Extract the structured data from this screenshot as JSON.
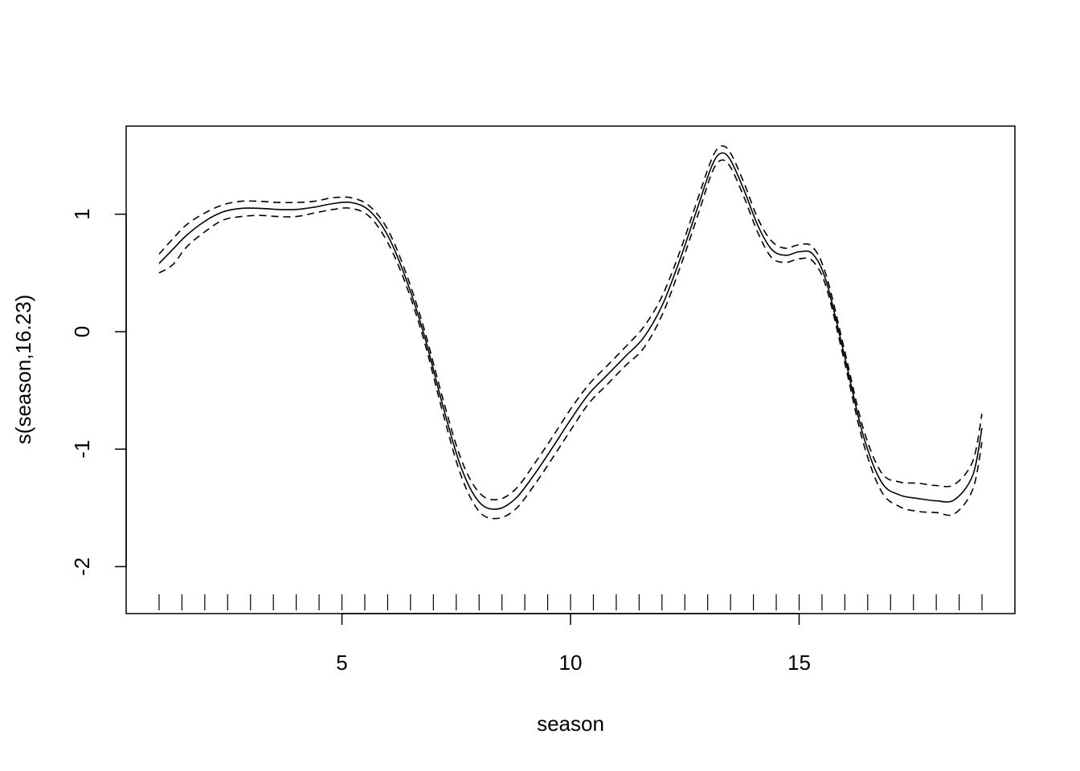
{
  "chart_data": {
    "type": "line",
    "title": "",
    "xlabel": "season",
    "ylabel": "s(season,16.23)",
    "xlim": [
      0.28,
      19.72
    ],
    "ylim": [
      -2.4,
      1.75
    ],
    "x_ticks": [
      {
        "value": 5,
        "label": "5"
      },
      {
        "value": 10,
        "label": "10"
      },
      {
        "value": 15,
        "label": "15"
      }
    ],
    "y_ticks": [
      {
        "value": -2,
        "label": "-2"
      },
      {
        "value": -1,
        "label": "-1"
      },
      {
        "value": 0,
        "label": "0"
      },
      {
        "value": 1,
        "label": "1"
      }
    ],
    "rug": [
      1,
      1.5,
      2,
      2.5,
      3,
      3.5,
      4,
      4.5,
      5,
      5.5,
      6,
      6.5,
      7,
      7.5,
      8,
      8.5,
      9,
      9.5,
      10,
      10.5,
      11,
      11.5,
      12,
      12.5,
      13,
      13.5,
      14,
      14.5,
      15,
      15.5,
      16,
      16.5,
      17,
      17.5,
      18,
      18.5,
      19
    ],
    "grid": false,
    "legend": "none",
    "series": [
      {
        "style": "solid",
        "x": [
          1,
          1.3,
          1.6,
          2,
          2.4,
          2.8,
          3.2,
          3.6,
          4,
          4.4,
          4.8,
          5.2,
          5.6,
          6,
          6.4,
          6.8,
          7.2,
          7.6,
          8,
          8.4,
          8.8,
          9.2,
          9.6,
          10,
          10.4,
          10.8,
          11.2,
          11.6,
          12,
          12.4,
          12.8,
          13.1,
          13.3,
          13.5,
          13.8,
          14.1,
          14.4,
          14.7,
          15,
          15.3,
          15.6,
          16,
          16.4,
          16.8,
          17.2,
          17.6,
          18,
          18.4,
          18.8,
          19
        ],
        "y": [
          0.58,
          0.7,
          0.82,
          0.94,
          1.02,
          1.05,
          1.05,
          1.04,
          1.04,
          1.06,
          1.09,
          1.1,
          1.03,
          0.82,
          0.45,
          -0.03,
          -0.62,
          -1.15,
          -1.45,
          -1.51,
          -1.42,
          -1.22,
          -0.99,
          -0.75,
          -0.53,
          -0.37,
          -0.21,
          -0.05,
          0.22,
          0.62,
          1.08,
          1.42,
          1.52,
          1.46,
          1.2,
          0.9,
          0.7,
          0.65,
          0.68,
          0.66,
          0.42,
          -0.22,
          -0.88,
          -1.28,
          -1.39,
          -1.42,
          -1.44,
          -1.43,
          -1.22,
          -0.82
        ]
      },
      {
        "style": "dashed",
        "x": [
          1,
          1.3,
          1.6,
          2,
          2.4,
          2.8,
          3.2,
          3.6,
          4,
          4.4,
          4.8,
          5.2,
          5.6,
          6,
          6.4,
          6.8,
          7.2,
          7.6,
          8,
          8.4,
          8.8,
          9.2,
          9.6,
          10,
          10.4,
          10.8,
          11.2,
          11.6,
          12,
          12.4,
          12.8,
          13.1,
          13.3,
          13.5,
          13.8,
          14.1,
          14.4,
          14.7,
          15,
          15.3,
          15.6,
          16,
          16.4,
          16.8,
          17.2,
          17.6,
          18,
          18.4,
          18.8,
          19
        ],
        "y": [
          0.66,
          0.79,
          0.91,
          1.01,
          1.08,
          1.11,
          1.11,
          1.1,
          1.1,
          1.11,
          1.14,
          1.14,
          1.07,
          0.87,
          0.5,
          0.02,
          -0.56,
          -1.08,
          -1.37,
          -1.43,
          -1.34,
          -1.13,
          -0.9,
          -0.66,
          -0.45,
          -0.29,
          -0.13,
          0.04,
          0.3,
          0.69,
          1.15,
          1.48,
          1.58,
          1.52,
          1.26,
          0.96,
          0.77,
          0.71,
          0.74,
          0.72,
          0.47,
          -0.17,
          -0.82,
          -1.2,
          -1.28,
          -1.29,
          -1.31,
          -1.3,
          -1.1,
          -0.7
        ]
      },
      {
        "style": "dashed",
        "x": [
          1,
          1.3,
          1.6,
          2,
          2.4,
          2.8,
          3.2,
          3.6,
          4,
          4.4,
          4.8,
          5.2,
          5.6,
          6,
          6.4,
          6.8,
          7.2,
          7.6,
          8,
          8.4,
          8.8,
          9.2,
          9.6,
          10,
          10.4,
          10.8,
          11.2,
          11.6,
          12,
          12.4,
          12.8,
          13.1,
          13.3,
          13.5,
          13.8,
          14.1,
          14.4,
          14.7,
          15,
          15.3,
          15.6,
          16,
          16.4,
          16.8,
          17.2,
          17.6,
          18,
          18.4,
          18.8,
          19
        ],
        "y": [
          0.5,
          0.57,
          0.72,
          0.85,
          0.95,
          0.98,
          0.99,
          0.98,
          0.98,
          1.01,
          1.04,
          1.05,
          0.98,
          0.76,
          0.4,
          -0.08,
          -0.68,
          -1.22,
          -1.53,
          -1.59,
          -1.51,
          -1.31,
          -1.08,
          -0.84,
          -0.61,
          -0.45,
          -0.29,
          -0.14,
          0.14,
          0.55,
          1.01,
          1.36,
          1.46,
          1.4,
          1.14,
          0.84,
          0.63,
          0.59,
          0.62,
          0.6,
          0.37,
          -0.27,
          -0.94,
          -1.36,
          -1.49,
          -1.53,
          -1.54,
          -1.55,
          -1.34,
          -0.94
        ]
      }
    ]
  }
}
